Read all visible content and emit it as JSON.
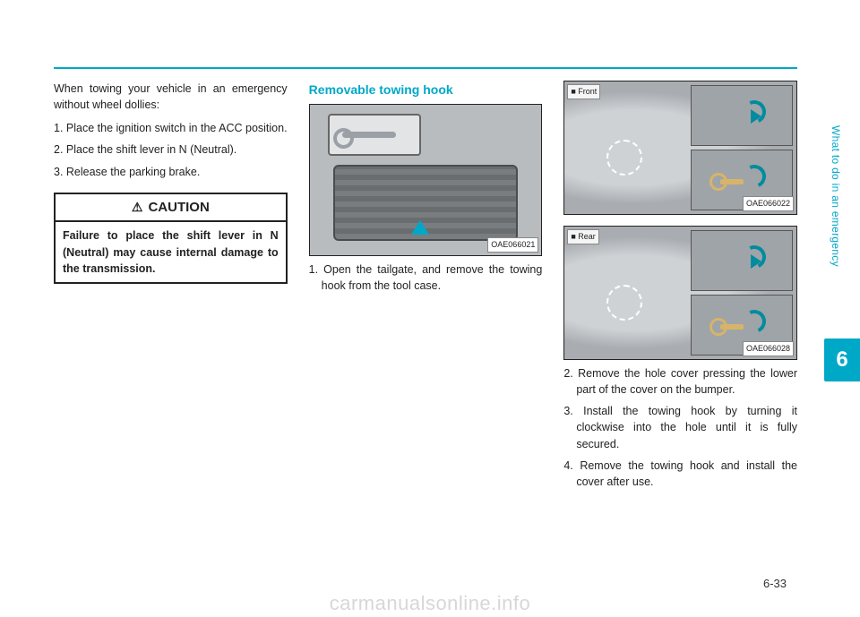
{
  "side_label": "What to do in an emergency",
  "tab_number": "6",
  "page_number": "6-33",
  "watermark": "carmanualsonline.info",
  "col1": {
    "intro": "When towing your vehicle in an emergency without wheel dollies:",
    "steps": [
      "1. Place the ignition switch in the ACC position.",
      "2. Place the shift lever in N (Neutral).",
      "3. Release the parking brake."
    ],
    "caution_head": "CAUTION",
    "caution_body": "Failure to place the shift lever in N (Neutral) may cause internal damage to the transmission."
  },
  "col2": {
    "title": "Removable towing hook",
    "fig_tag": "OAE066021",
    "step1": "1. Open the tailgate, and remove the towing hook from the tool case."
  },
  "col3": {
    "front_label": "■ Front",
    "rear_label": "■ Rear",
    "front_tag": "OAE066022",
    "rear_tag": "OAE066028",
    "steps": [
      "2. Remove the hole cover pressing the lower part of the cover on the bumper.",
      "3. Install the towing hook by turning it clockwise into the hole until it is fully secured.",
      "4. Remove the towing hook and install the cover after use."
    ]
  },
  "colors": {
    "accent": "#00a8c8",
    "text": "#222222",
    "watermark": "#d7d7d7"
  }
}
